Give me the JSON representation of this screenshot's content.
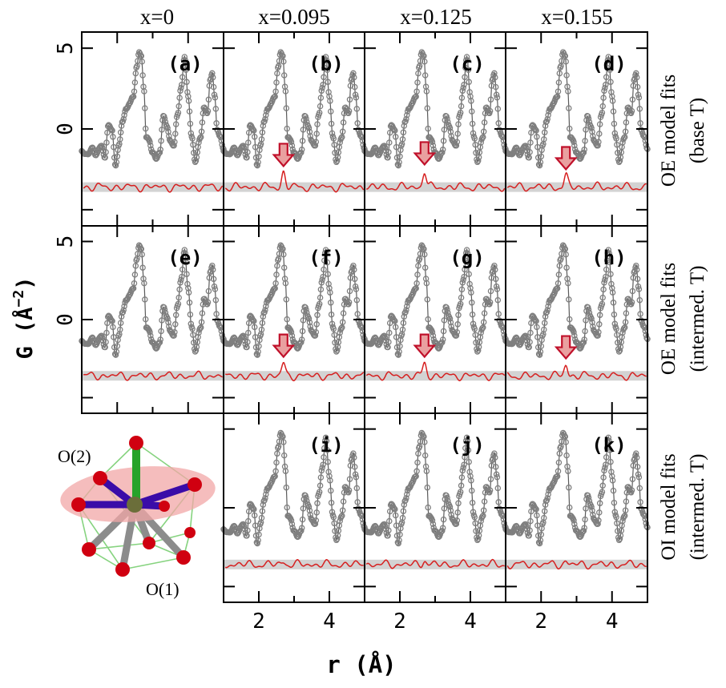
{
  "figure": {
    "column_headers": [
      "x=0",
      "x=0.095",
      "x=0.125",
      "x=0.155"
    ],
    "row_labels": [
      [
        "OE model fits",
        "(base T)"
      ],
      [
        "OE model fits",
        "(intermed. T)"
      ],
      [
        "OI model fits",
        "(intermed. T)"
      ]
    ],
    "ylabel_main": "G (Å",
    "ylabel_sup": "−2",
    "ylabel_close": ")",
    "xlabel": "r (Å)",
    "inset_labels": {
      "top": "O(2)",
      "bottom": "O(1)"
    }
  },
  "chart_data": {
    "type": "line",
    "title": "",
    "xlabel": "r (Å)",
    "ylabel": "G (Å^-2)",
    "xlim": [
      1.0,
      5.0
    ],
    "ylim": [
      -6.0,
      6.0
    ],
    "x_ticks": [
      2,
      4
    ],
    "y_ticks": [
      -5,
      0,
      5
    ],
    "x_tick_labels": [
      "2",
      "4"
    ],
    "y_tick_labels": [
      "",
      "0",
      "5"
    ],
    "difference_offset": -3.6,
    "panel_layout": {
      "rows": [
        [
          "a",
          "b",
          "c",
          "d"
        ],
        [
          null,
          null,
          null,
          null
        ],
        [
          null,
          "i",
          "j",
          "k"
        ]
      ],
      "row2": [
        "e",
        "f",
        "g",
        "h"
      ]
    },
    "panels": [
      {
        "id": "a",
        "label": "(a)",
        "model": "OE",
        "temperature": "base T",
        "composition": "x=0",
        "arrow_r": null,
        "diff_peak": 0.0
      },
      {
        "id": "b",
        "label": "(b)",
        "model": "OE",
        "temperature": "base T",
        "composition": "x=0.095",
        "arrow_r": 2.7,
        "diff_peak": 0.9
      },
      {
        "id": "c",
        "label": "(c)",
        "model": "OE",
        "temperature": "base T",
        "composition": "x=0.125",
        "arrow_r": 2.7,
        "diff_peak": 1.0
      },
      {
        "id": "d",
        "label": "(d)",
        "model": "OE",
        "temperature": "base T",
        "composition": "x=0.155",
        "arrow_r": 2.7,
        "diff_peak": 0.7
      },
      {
        "id": "e",
        "label": "(e)",
        "model": "OE",
        "temperature": "intermed. T",
        "composition": "x=0",
        "arrow_r": null,
        "diff_peak": 0.0
      },
      {
        "id": "f",
        "label": "(f)",
        "model": "OE",
        "temperature": "intermed. T",
        "composition": "x=0.095",
        "arrow_r": 2.7,
        "diff_peak": 0.8
      },
      {
        "id": "g",
        "label": "(g)",
        "model": "OE",
        "temperature": "intermed. T",
        "composition": "x=0.125",
        "arrow_r": 2.7,
        "diff_peak": 0.8
      },
      {
        "id": "h",
        "label": "(h)",
        "model": "OE",
        "temperature": "intermed. T",
        "composition": "x=0.155",
        "arrow_r": 2.7,
        "diff_peak": 0.7
      },
      {
        "id": "i",
        "label": "(i)",
        "model": "OI",
        "temperature": "intermed. T",
        "composition": "x=0.095",
        "arrow_r": null,
        "diff_peak": 0.2
      },
      {
        "id": "j",
        "label": "(j)",
        "model": "OI",
        "temperature": "intermed. T",
        "composition": "x=0.125",
        "arrow_r": null,
        "diff_peak": 0.3
      },
      {
        "id": "k",
        "label": "(k)",
        "model": "OI",
        "temperature": "intermed. T",
        "composition": "x=0.155",
        "arrow_r": null,
        "diff_peak": 0.2
      }
    ],
    "G_curve": {
      "r": [
        1.0,
        1.15,
        1.3,
        1.4,
        1.55,
        1.65,
        1.75,
        1.85,
        1.95,
        2.05,
        2.15,
        2.25,
        2.35,
        2.45,
        2.55,
        2.62,
        2.68,
        2.75,
        2.82,
        2.9,
        3.0,
        3.1,
        3.2,
        3.3,
        3.4,
        3.5,
        3.6,
        3.7,
        3.8,
        3.9,
        4.0,
        4.1,
        4.2,
        4.35,
        4.45,
        4.55,
        4.62,
        4.68,
        4.75,
        4.82,
        4.9,
        5.0
      ],
      "G": [
        -1.4,
        -1.6,
        -1.2,
        -1.6,
        -1.0,
        -1.8,
        0.2,
        0.0,
        -2.3,
        -1.0,
        0.5,
        1.2,
        1.6,
        2.0,
        3.8,
        4.8,
        4.5,
        2.5,
        -0.5,
        -0.7,
        -1.5,
        -1.8,
        -1.5,
        0.8,
        0.2,
        -0.8,
        -1.0,
        0.9,
        2.5,
        4.5,
        2.0,
        -0.5,
        -2.0,
        -0.5,
        1.3,
        1.0,
        3.0,
        3.5,
        2.0,
        0.0,
        -0.5,
        -1.2
      ]
    },
    "colors": {
      "data_points": "#7f7f7f",
      "model_line": "#5a5a5a",
      "difference": "#d62020",
      "baseline_band": "#d3d3d3",
      "arrow_fill": "#e9a0a0",
      "arrow_stroke": "#c0102a",
      "ellipse": "#f2a7a7",
      "atom_red": "#d00010",
      "bond_blue": "#3a0ca8",
      "bond_green": "#27a32a",
      "bond_gray": "#888888",
      "cage": "#86d37f",
      "center_atom": "#6b6e3a"
    }
  }
}
